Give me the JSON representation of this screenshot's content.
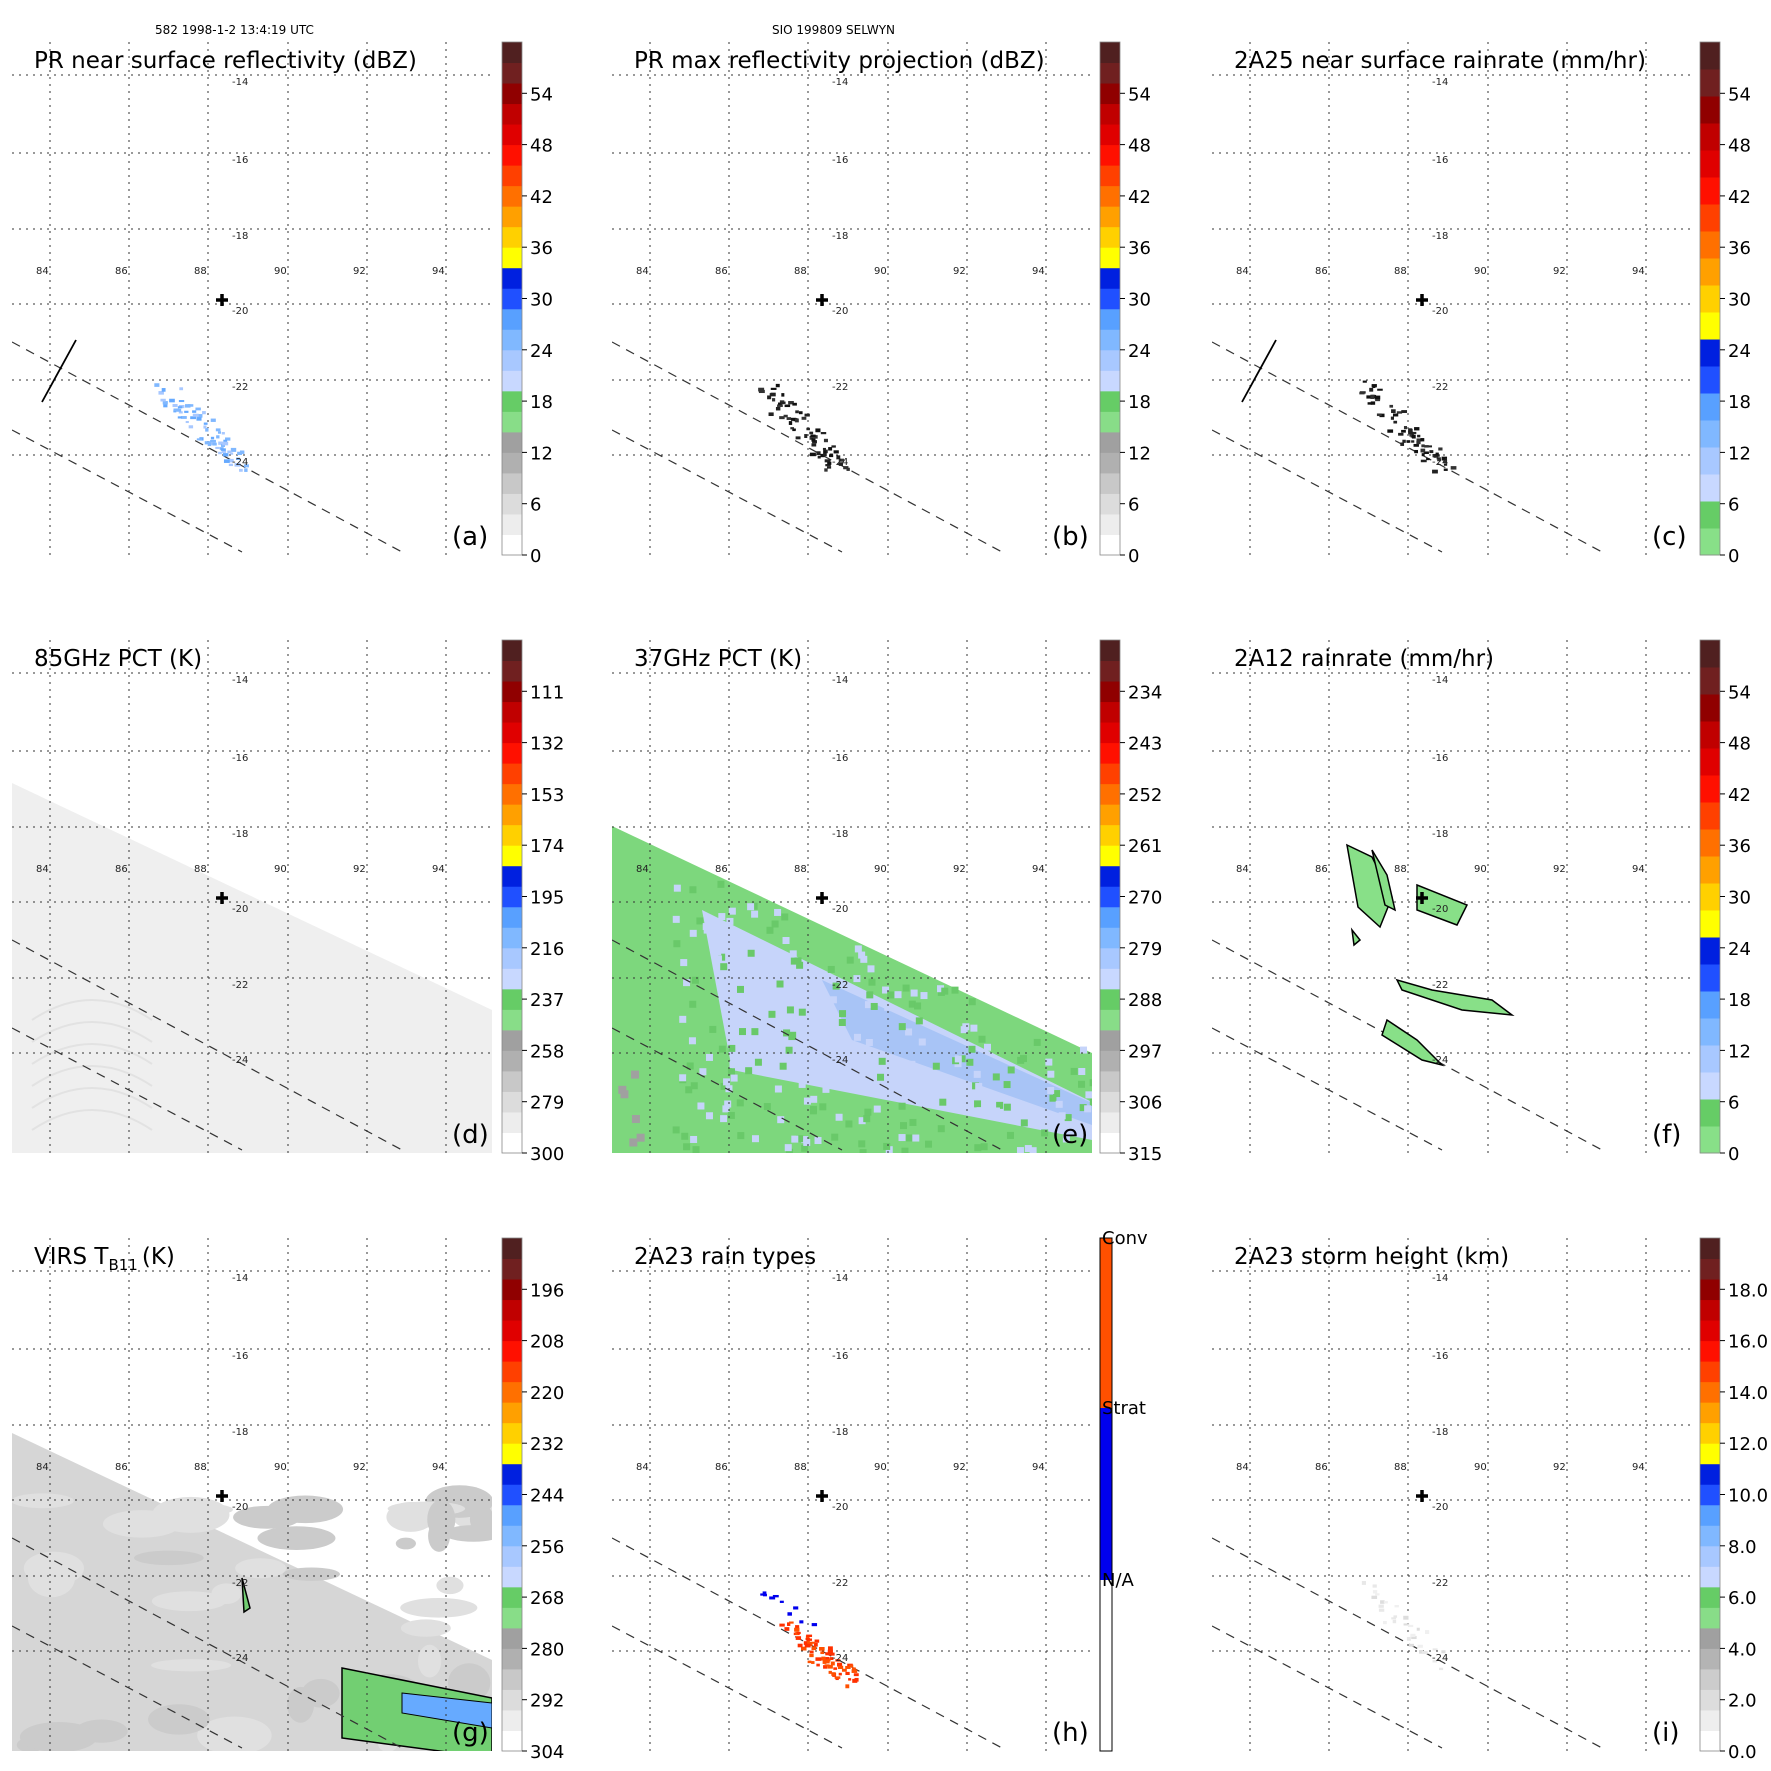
{
  "header": {
    "left": "582 1998-1-2 13:4:19 UTC",
    "center": "SIO 199809 SELWYN"
  },
  "chart_data": [
    {
      "id": "a",
      "type": "heatmap",
      "title": "PR near surface reflectivity (dBZ)",
      "label": "(a)",
      "colorbar": "pr",
      "ticks": [
        "54",
        "48",
        "42",
        "36",
        "30",
        "24",
        "18",
        "12",
        "6",
        "0"
      ],
      "overlay": "pr-swath",
      "ticklon": [
        "84",
        "86",
        "88",
        "90",
        "92",
        "94"
      ],
      "ticklat": [
        "-14",
        "-16",
        "-18",
        "-20",
        "-22",
        "-24"
      ]
    },
    {
      "id": "b",
      "type": "heatmap",
      "title": "PR max reflectivity projection (dBZ)",
      "label": "(b)",
      "colorbar": "pr",
      "ticks": [
        "54",
        "48",
        "42",
        "36",
        "30",
        "24",
        "18",
        "12",
        "6",
        "0"
      ],
      "overlay": "pr-dark",
      "ticklon": [
        "84",
        "86",
        "88",
        "90",
        "92",
        "94"
      ],
      "ticklat": [
        "-14",
        "-16",
        "-18",
        "-20",
        "-22",
        "-24"
      ]
    },
    {
      "id": "c",
      "type": "heatmap",
      "title": "2A25 near surface rainrate (mm/hr)",
      "label": "(c)",
      "colorbar": "rain",
      "ticks": [
        "54",
        "48",
        "42",
        "36",
        "30",
        "24",
        "18",
        "12",
        "6",
        "0"
      ],
      "overlay": "pr-dark-swath",
      "ticklon": [
        "84",
        "86",
        "88",
        "90",
        "92",
        "94"
      ],
      "ticklat": [
        "-14",
        "-16",
        "-18",
        "-20",
        "-22",
        "-24"
      ]
    },
    {
      "id": "d",
      "type": "heatmap",
      "title": "85GHz PCT (K)",
      "label": "(d)",
      "colorbar": "pr",
      "ticks": [
        "111",
        "132",
        "153",
        "174",
        "195",
        "216",
        "237",
        "258",
        "279",
        "300"
      ],
      "overlay": "tmi-gray",
      "ticklon": [
        "84",
        "86",
        "88",
        "90",
        "92",
        "94"
      ],
      "ticklat": [
        "-14",
        "-16",
        "-18",
        "-20",
        "-22",
        "-24"
      ]
    },
    {
      "id": "e",
      "type": "heatmap",
      "title": "37GHz PCT (K)",
      "label": "(e)",
      "colorbar": "pr",
      "ticks": [
        "234",
        "243",
        "252",
        "261",
        "270",
        "279",
        "288",
        "297",
        "306",
        "315"
      ],
      "overlay": "tmi-green",
      "ticklon": [
        "84",
        "86",
        "88",
        "90",
        "92",
        "94"
      ],
      "ticklat": [
        "-14",
        "-16",
        "-18",
        "-20",
        "-22",
        "-24"
      ]
    },
    {
      "id": "f",
      "type": "heatmap",
      "title": "2A12 rainrate (mm/hr)",
      "label": "(f)",
      "colorbar": "rain",
      "ticks": [
        "54",
        "48",
        "42",
        "36",
        "30",
        "24",
        "18",
        "12",
        "6",
        "0"
      ],
      "overlay": "rain-contours",
      "ticklon": [
        "84",
        "86",
        "88",
        "90",
        "92",
        "94"
      ],
      "ticklat": [
        "-14",
        "-16",
        "-18",
        "-20",
        "-22",
        "-24"
      ]
    },
    {
      "id": "g",
      "type": "heatmap",
      "title": "VIRS T",
      "title_sub": "B11",
      "title_unit": "(K)",
      "label": "(g)",
      "colorbar": "pr",
      "ticks": [
        "196",
        "208",
        "220",
        "232",
        "244",
        "256",
        "268",
        "280",
        "292",
        "304"
      ],
      "overlay": "virs",
      "ticklon": [
        "84",
        "86",
        "88",
        "90",
        "92",
        "94"
      ],
      "ticklat": [
        "-14",
        "-16",
        "-18",
        "-20",
        "-22",
        "-24"
      ]
    },
    {
      "id": "h",
      "type": "heatmap",
      "title": "2A23 rain types",
      "label": "(h)",
      "colorbar": "types",
      "ticks": [
        "Conv",
        "Strat",
        "N/A"
      ],
      "overlay": "types",
      "ticklon": [
        "84",
        "86",
        "88",
        "90",
        "92",
        "94"
      ],
      "ticklat": [
        "-14",
        "-16",
        "-18",
        "-20",
        "-22",
        "-24"
      ]
    },
    {
      "id": "i",
      "type": "heatmap",
      "title": "2A23 storm height (km)",
      "label": "(i)",
      "colorbar": "height",
      "ticks": [
        "18.0",
        "16.0",
        "14.0",
        "12.0",
        "10.0",
        "8.0",
        "6.0",
        "4.0",
        "2.0",
        "0.0"
      ],
      "overlay": "heights",
      "ticklon": [
        "84",
        "86",
        "88",
        "90",
        "92",
        "94"
      ],
      "ticklat": [
        "-14",
        "-16",
        "-18",
        "-20",
        "-22",
        "-24"
      ]
    }
  ],
  "colorscales": {
    "pr": [
      "#ffffff",
      "#ededed",
      "#dcdcdc",
      "#c8c8c8",
      "#b0b0b0",
      "#a0a0a0",
      "#88dd88",
      "#66cc66",
      "#c8d8ff",
      "#a8c8ff",
      "#80b8ff",
      "#58a0ff",
      "#2050ff",
      "#0020e0",
      "#ffff00",
      "#ffd000",
      "#ffa000",
      "#ff7000",
      "#ff4000",
      "#ff1000",
      "#e00000",
      "#c00000",
      "#900000",
      "#702020",
      "#502020"
    ],
    "rain": [
      "#88e088",
      "#66cc66",
      "#c8d8ff",
      "#a8c8ff",
      "#80b8ff",
      "#58a0ff",
      "#2050ff",
      "#0020e0",
      "#ffff00",
      "#ffd000",
      "#ffa000",
      "#ff7000",
      "#ff4000",
      "#ff1000",
      "#e00000",
      "#c00000",
      "#900000",
      "#702020",
      "#502020"
    ],
    "height": [
      "#ffffff",
      "#eeeeee",
      "#dddddd",
      "#cccccc",
      "#b4b4b4",
      "#a0a0a0",
      "#88dd88",
      "#66cc66",
      "#c8d8ff",
      "#a8c8ff",
      "#80b8ff",
      "#58a0ff",
      "#2050ff",
      "#0020e0",
      "#ffff00",
      "#ffd000",
      "#ffa000",
      "#ff7000",
      "#ff4000",
      "#ff1000",
      "#e00000",
      "#c00000",
      "#900000",
      "#702020",
      "#502020"
    ],
    "types": [
      "#ffffff",
      "#0000ee",
      "#ff5000"
    ]
  }
}
